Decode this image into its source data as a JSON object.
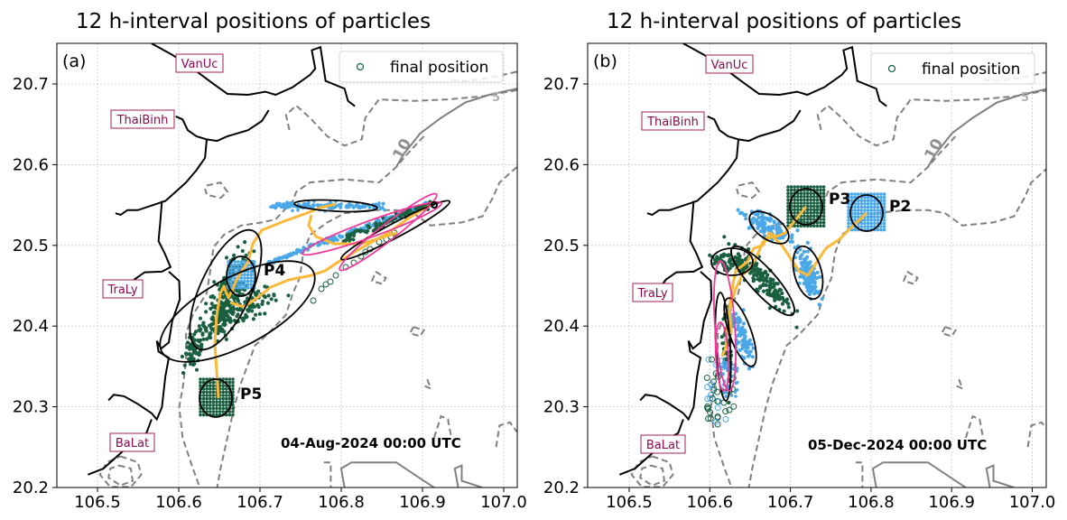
{
  "chart_data": [
    {
      "type": "scatter",
      "panel": "(a)",
      "title": "12 h-interval positions of particles",
      "x_ticks": [
        "106.5",
        "106.6",
        "106.7",
        "106.8",
        "106.9",
        "107.0"
      ],
      "y_ticks": [
        "20.2",
        "20.3",
        "20.4",
        "20.5",
        "20.6",
        "20.7"
      ],
      "xlim": [
        106.45,
        107.01
      ],
      "ylim": [
        20.2,
        20.75
      ],
      "grid": true,
      "legend": {
        "label": "final position",
        "placement": "top-right"
      },
      "places": [
        "VanUc",
        "ThaiBinh",
        "TraLy",
        "BaLat"
      ],
      "contour_labels": [
        "10",
        "5"
      ],
      "date_label": "04-Aug-2024 00:00 UTC",
      "release_points": [
        {
          "name": "P4",
          "lon": 106.677,
          "lat": 20.462
        },
        {
          "name": "P5",
          "lon": 106.648,
          "lat": 20.31
        }
      ]
    },
    {
      "type": "scatter",
      "panel": "(b)",
      "title": "12 h-interval positions of particles",
      "x_ticks": [
        "106.5",
        "106.6",
        "106.7",
        "106.8",
        "106.9",
        "107.0"
      ],
      "y_ticks": [
        "20.2",
        "20.3",
        "20.4",
        "20.5",
        "20.6",
        "20.7"
      ],
      "xlim": [
        106.45,
        107.01
      ],
      "ylim": [
        20.2,
        20.75
      ],
      "grid": true,
      "legend": {
        "label": "final position",
        "placement": "top-right"
      },
      "places": [
        "VanUc",
        "ThaiBinh",
        "TraLy",
        "BaLat"
      ],
      "contour_labels": [
        "10",
        "5"
      ],
      "date_label": "05-Dec-2024 00:00 UTC",
      "release_points": [
        {
          "name": "P3",
          "lon": 106.718,
          "lat": 20.552
        },
        {
          "name": "P2",
          "lon": 106.792,
          "lat": 20.543
        }
      ]
    }
  ],
  "colors": {
    "green": "#1a6040",
    "blue": "#4aa8e8",
    "track": "#fbb93a",
    "ellipse": "#000000",
    "ellipse_alt": "#f0399a",
    "place_text": "#8b0a50"
  }
}
